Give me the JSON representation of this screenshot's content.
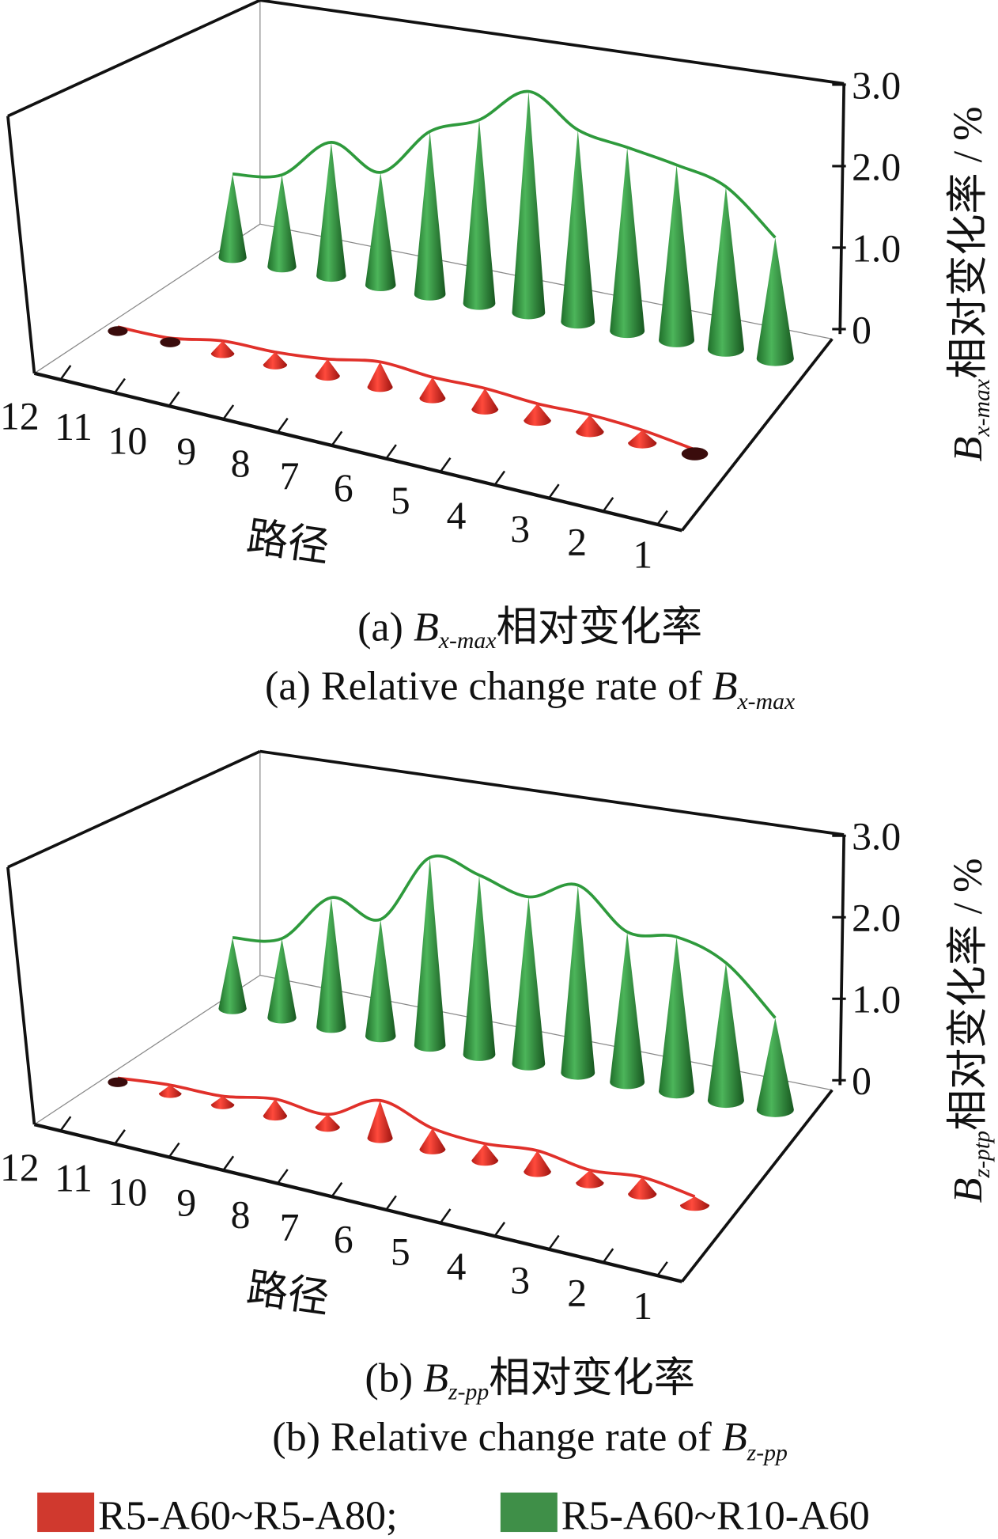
{
  "chart_data": [
    {
      "type": "3d-cone",
      "panel": "a",
      "x": [
        1,
        2,
        3,
        4,
        5,
        6,
        7,
        8,
        9,
        10,
        11,
        12
      ],
      "x_tick_labels": [
        "1",
        "2",
        "3",
        "4",
        "5",
        "6",
        "7",
        "8",
        "9",
        "10",
        "11",
        "12"
      ],
      "xlabel": "路径",
      "ylabel_symbol": "B",
      "ylabel_sub": "x-max",
      "ylabel_rest": "相对变化率 / %",
      "z_ticks": [
        "0",
        "1.0",
        "2.0",
        "3.0"
      ],
      "zlim": [
        0,
        3.0
      ],
      "series": [
        {
          "name": "R5-A60~R5-A80",
          "color": "#e0302a",
          "values": [
            0.05,
            0.15,
            0.2,
            0.2,
            0.25,
            0.25,
            0.3,
            0.2,
            0.15,
            0.15,
            0.05,
            0.05
          ]
        },
        {
          "name": "R5-A60~R10-A60",
          "color": "#2e9a3c",
          "values": [
            1.45,
            1.95,
            2.1,
            2.2,
            2.3,
            2.65,
            2.2,
            1.95,
            1.35,
            1.6,
            1.1,
            1.0
          ]
        }
      ],
      "caption_cn": {
        "prefix": "(a) ",
        "symbol": "B",
        "sub": "x-max",
        "rest": "相对变化率"
      },
      "caption_en": {
        "prefix": "(a)  Relative change rate of ",
        "symbol": "B",
        "sub": "x-max"
      }
    },
    {
      "type": "3d-cone",
      "panel": "b",
      "x": [
        1,
        2,
        3,
        4,
        5,
        6,
        7,
        8,
        9,
        10,
        11,
        12
      ],
      "x_tick_labels": [
        "1",
        "2",
        "3",
        "4",
        "5",
        "6",
        "7",
        "8",
        "9",
        "10",
        "11",
        "12"
      ],
      "xlabel": "路径",
      "ylabel_symbol": "B",
      "ylabel_sub": "z-ptp",
      "ylabel_rest": "相对变化率 / %",
      "z_ticks": [
        "0",
        "1.0",
        "2.0",
        "3.0"
      ],
      "zlim": [
        0,
        3.0
      ],
      "series": [
        {
          "name": "R5-A60~R5-A80",
          "color": "#e0302a",
          "values": [
            0.1,
            0.2,
            0.15,
            0.25,
            0.2,
            0.25,
            0.45,
            0.15,
            0.2,
            0.1,
            0.1,
            0.05
          ]
        },
        {
          "name": "R5-A60~R10-A60",
          "color": "#2e9a3c",
          "values": [
            1.1,
            1.65,
            1.85,
            1.8,
            2.25,
            2.0,
            2.15,
            2.25,
            1.4,
            1.55,
            0.95,
            0.85
          ]
        }
      ],
      "caption_cn": {
        "prefix": "(b) ",
        "symbol": "B",
        "sub": "z-pp",
        "rest": "相对变化率"
      },
      "caption_en": {
        "prefix": "(b)  Relative change rate of ",
        "symbol": "B",
        "sub": "z-pp"
      }
    }
  ],
  "legend": [
    {
      "label": "R5-A60~R5-A80;",
      "color": "#d0392e"
    },
    {
      "label": "R5-A60~R10-A60",
      "color": "#3f8f48"
    }
  ]
}
